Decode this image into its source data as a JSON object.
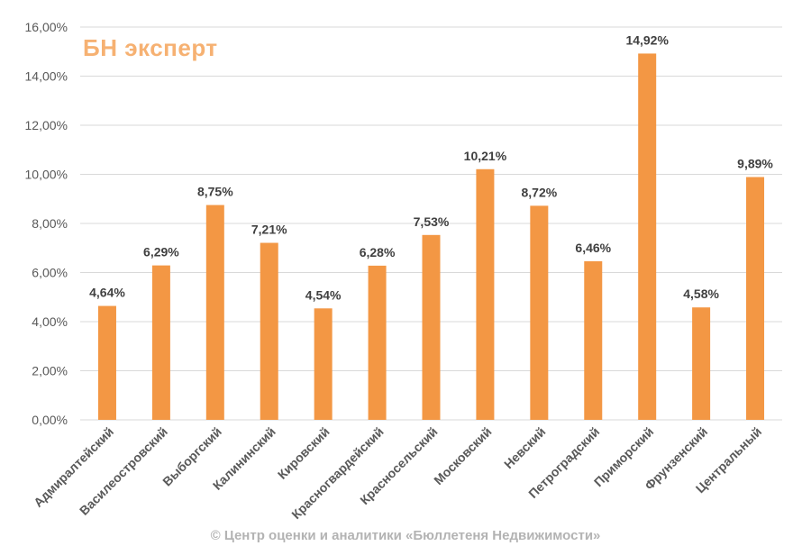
{
  "logo": {
    "text": "БН эксперт",
    "color": "#f5a45a"
  },
  "footer": {
    "text": "© Центр оценки и аналитики «Бюллетеня Недвижимости»"
  },
  "colors": {
    "bar": "#f39744",
    "grid": "#d9d9d9",
    "axis_text": "#595959",
    "label_text": "#404040"
  },
  "chart_data": {
    "type": "bar",
    "categories": [
      "Адмиралтейский",
      "Василеостровский",
      "Выборгский",
      "Калининский",
      "Кировский",
      "Красногвардейский",
      "Красносельский",
      "Московский",
      "Невский",
      "Петроградский",
      "Приморский",
      "Фрунзенский",
      "Центральный"
    ],
    "values": [
      4.64,
      6.29,
      8.75,
      7.21,
      4.54,
      6.28,
      7.53,
      10.21,
      8.72,
      6.46,
      14.92,
      4.58,
      9.89
    ],
    "data_labels": [
      "4,64%",
      "6,29%",
      "8,75%",
      "7,21%",
      "4,54%",
      "6,28%",
      "7,53%",
      "10,21%",
      "8,72%",
      "6,46%",
      "14,92%",
      "4,58%",
      "9,89%"
    ],
    "y_ticks": [
      0,
      2,
      4,
      6,
      8,
      10,
      12,
      14,
      16
    ],
    "y_tick_labels": [
      "0,00%",
      "2,00%",
      "4,00%",
      "6,00%",
      "8,00%",
      "10,00%",
      "12,00%",
      "14,00%",
      "16,00%"
    ],
    "ylim": [
      0,
      16
    ],
    "grid": true,
    "legend": "none",
    "title": "",
    "xlabel": "",
    "ylabel": ""
  }
}
